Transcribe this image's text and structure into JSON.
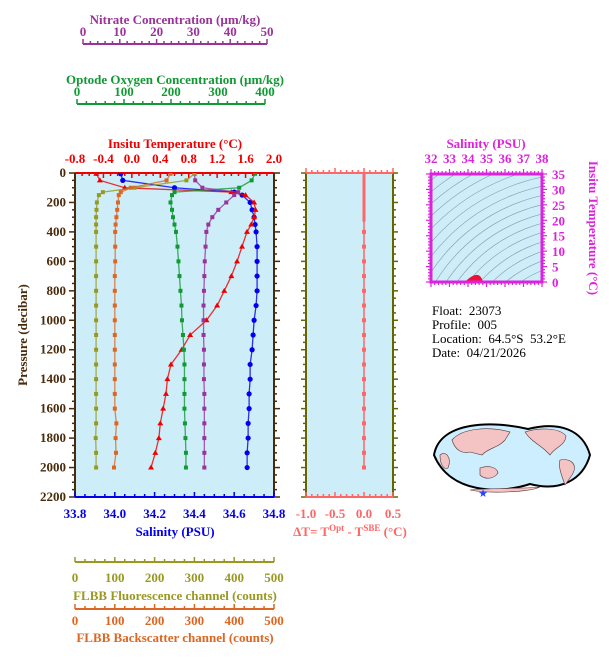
{
  "chart_data": [
    {
      "type": "line",
      "title": "Float profile: multi-variable vs pressure",
      "ylabel": "Pressure (decibar)",
      "ylim": [
        2200,
        0
      ],
      "yticks": [
        0,
        200,
        400,
        600,
        800,
        1000,
        1200,
        1400,
        1600,
        1800,
        2000,
        2200
      ],
      "axes": {
        "salinity": {
          "label": "Salinity (PSU)",
          "range": [
            33.8,
            34.8
          ],
          "ticks": [
            "33.8",
            "34.0",
            "34.2",
            "34.4",
            "34.6",
            "34.8"
          ],
          "color": "#0000ee",
          "position": "bottom"
        },
        "temperature": {
          "label": "Insitu Temperature (°C)",
          "range": [
            -0.8,
            2.0
          ],
          "ticks": [
            "-0.8",
            "-0.4",
            "0.0",
            "0.4",
            "0.8",
            "1.2",
            "1.6",
            "2.0"
          ],
          "color": "#ee0000",
          "position": "top"
        },
        "oxygen": {
          "label": "Optode Oxygen Concentration (µm/kg)",
          "range": [
            0,
            400
          ],
          "ticks": [
            "0",
            "100",
            "200",
            "300",
            "400"
          ],
          "color": "#119933",
          "position": "top"
        },
        "nitrate": {
          "label": "Nitrate Concentration (µm/kg)",
          "range": [
            0,
            50
          ],
          "ticks": [
            "0",
            "10",
            "20",
            "30",
            "40",
            "50"
          ],
          "color": "#993399",
          "position": "top"
        },
        "fluorescence": {
          "label": "FLBB Fluorescence channel (counts)",
          "range": [
            0,
            500
          ],
          "ticks": [
            "0",
            "100",
            "200",
            "300",
            "400",
            "500"
          ],
          "color": "#999922",
          "position": "bottom"
        },
        "backscatter": {
          "label": "FLBB Backscatter channel (counts)",
          "range": [
            0,
            500
          ],
          "ticks": [
            "0",
            "100",
            "200",
            "300",
            "400",
            "500"
          ],
          "color": "#dd6622",
          "position": "bottom"
        }
      },
      "pressure": [
        5,
        50,
        100,
        130,
        150,
        200,
        250,
        300,
        350,
        400,
        500,
        600,
        700,
        800,
        900,
        1000,
        1100,
        1200,
        1300,
        1400,
        1500,
        1600,
        1700,
        1800,
        1900,
        2000
      ],
      "series": [
        {
          "name": "Salinity",
          "axis": "salinity",
          "color": "#0000ee",
          "values": [
            34.03,
            34.04,
            34.3,
            34.6,
            34.64,
            34.68,
            34.69,
            34.7,
            34.705,
            34.71,
            34.715,
            34.715,
            34.715,
            34.715,
            34.71,
            34.7,
            34.695,
            34.69,
            34.68,
            34.68,
            34.675,
            34.675,
            34.67,
            34.67,
            34.665,
            34.665
          ]
        },
        {
          "name": "Temperature",
          "axis": "temperature",
          "color": "#ee0000",
          "values": [
            -0.5,
            -0.45,
            -0.1,
            1.4,
            1.6,
            1.72,
            1.74,
            1.72,
            1.68,
            1.62,
            1.55,
            1.48,
            1.4,
            1.3,
            1.2,
            1.05,
            0.82,
            0.7,
            0.55,
            0.5,
            0.48,
            0.44,
            0.4,
            0.38,
            0.33,
            0.27
          ]
        },
        {
          "name": "Oxygen",
          "axis": "oxygen",
          "color": "#119933",
          "values": [
            362,
            355,
            330,
            200,
            195,
            192,
            195,
            197,
            200,
            203,
            206,
            208,
            210,
            212,
            214,
            215,
            217,
            219,
            220,
            220,
            220,
            220,
            221,
            222,
            223,
            223
          ]
        },
        {
          "name": "Nitrate",
          "axis": "nitrate",
          "color": "#993399",
          "values": [
            30.0,
            30.2,
            32.0,
            41.0,
            40.0,
            38.0,
            36.0,
            34.5,
            33.5,
            33.0,
            32.8,
            32.6,
            32.5,
            32.4,
            32.3,
            32.3,
            32.3,
            32.4,
            32.4,
            32.4,
            32.5,
            32.5,
            32.5,
            32.5,
            32.5,
            32.5
          ]
        },
        {
          "name": "Fluorescence",
          "axis": "fluorescence",
          "color": "#999922",
          "values": [
            300,
            280,
            150,
            70,
            60,
            55,
            54,
            53,
            53,
            53,
            53,
            53,
            53,
            53,
            53,
            53,
            53,
            53,
            53,
            53,
            53,
            53,
            53,
            52,
            53,
            53
          ]
        },
        {
          "name": "Backscatter",
          "axis": "backscatter",
          "color": "#dd6622",
          "values": [
            240,
            230,
            140,
            115,
            110,
            108,
            106,
            104,
            102,
            101,
            101,
            101,
            100,
            100,
            100,
            100,
            100,
            100,
            100,
            100,
            100,
            100,
            104,
            102,
            103,
            98
          ]
        }
      ]
    },
    {
      "type": "line",
      "title": "Temperature difference",
      "xlabel": "ΔT= T^Opt - T^SBE (°C)",
      "xlim": [
        -1.0,
        0.5
      ],
      "xticks": [
        "-1.0",
        "-0.5",
        "0.0",
        "0.5"
      ],
      "ylim": [
        2200,
        0
      ],
      "series": [
        {
          "name": "dT",
          "color": "#ff6666",
          "x": [
            0.0,
            0.0,
            0.0,
            0.0,
            0.0
          ],
          "pressure": [
            5,
            100,
            400,
            1000,
            2000
          ]
        }
      ]
    },
    {
      "type": "scatter",
      "title": "T-S diagram",
      "xlabel": "Salinity (PSU)",
      "ylabel": "Insitu Temperature (°C)",
      "xlim": [
        32,
        38
      ],
      "ylim": [
        0,
        35
      ],
      "xticks": [
        "32",
        "33",
        "34",
        "35",
        "36",
        "37",
        "38"
      ],
      "yticks": [
        "0",
        "5",
        "10",
        "15",
        "20",
        "25",
        "30",
        "35"
      ],
      "series": [
        {
          "name": "profile",
          "color": "#ee0000",
          "x": [
            34.0,
            34.3,
            34.7,
            34.7
          ],
          "y": [
            -0.5,
            0.5,
            1.7,
            0.3
          ]
        }
      ]
    }
  ],
  "axis_labels": {
    "nitrate_title": "Nitrate Concentration (µm/kg)",
    "oxygen_title": "Optode Oxygen Concentration (µm/kg)",
    "temperature_title": "Insitu Temperature (°C)",
    "pressure_title": "Pressure (decibar)",
    "salinity_title": "Salinity (PSU)",
    "fluorescence_title": "FLBB Fluorescence channel (counts)",
    "backscatter_title": "FLBB Backscatter channel (counts)",
    "dt_title_prefix": "ΔT= T",
    "dt_sup1": "Opt",
    "dt_mid": " - T",
    "dt_sup2": "SBE",
    "dt_suffix": " (°C)",
    "ts_salinity_title": "Salinity (PSU)",
    "ts_temperature_title": "Insitu Temperature (°C)"
  },
  "info": {
    "float": "Float:  23073",
    "profile": "Profile:  005",
    "location": "Location:  64.5°S  53.2°E",
    "date": "Date:  04/21/2026"
  },
  "map": {
    "marker": "star-icon",
    "marker_color": "#2244ff",
    "land_color": "#f4c4c4",
    "ocean_color": "#cceeff"
  }
}
